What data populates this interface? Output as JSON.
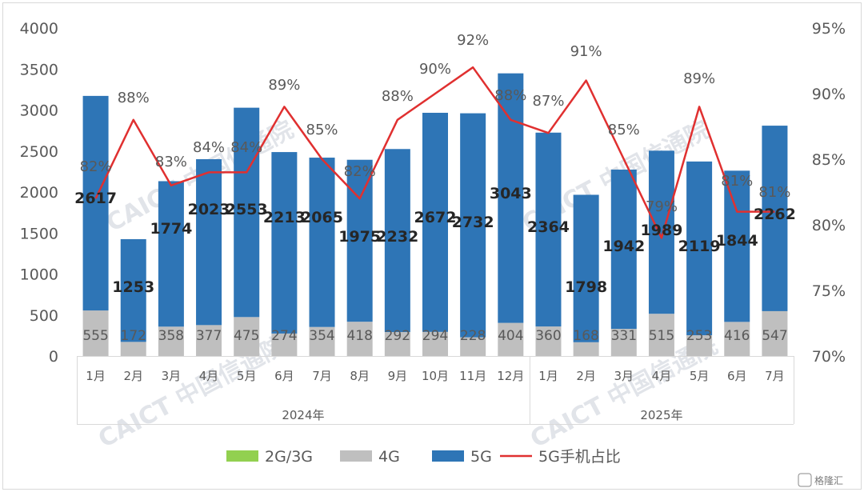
{
  "chart_data": {
    "type": "bar",
    "stacked": true,
    "categories": [
      "1月",
      "2月",
      "3月",
      "4月",
      "5月",
      "6月",
      "7月",
      "8月",
      "9月",
      "10月",
      "11月",
      "12月",
      "1月",
      "2月",
      "3月",
      "4月",
      "5月",
      "6月",
      "7月"
    ],
    "groups": [
      {
        "label": "2024年",
        "count": 12
      },
      {
        "label": "2025年",
        "count": 7
      }
    ],
    "series": [
      {
        "name": "2G/3G",
        "type": "bar",
        "color": "#92d050",
        "values": [
          0,
          0,
          0,
          0,
          0,
          0,
          0,
          0,
          0,
          0,
          0,
          0,
          0,
          0,
          0,
          0,
          0,
          0,
          0
        ]
      },
      {
        "name": "4G",
        "type": "bar",
        "color": "#bfbfbf",
        "values": [
          555,
          172,
          358,
          377,
          475,
          274,
          354,
          418,
          292,
          294,
          228,
          404,
          360,
          168,
          331,
          515,
          253,
          416,
          547
        ]
      },
      {
        "name": "5G",
        "type": "bar",
        "color": "#2e75b6",
        "values": [
          2617,
          1253,
          1774,
          2023,
          2553,
          2213,
          2065,
          1975,
          2232,
          2672,
          2732,
          3043,
          2364,
          1798,
          1942,
          1989,
          2119,
          1844,
          2262
        ]
      },
      {
        "name": "5G手机占比",
        "type": "line",
        "axis": "right",
        "color": "#e03030",
        "values": [
          82,
          88,
          83,
          84,
          84,
          89,
          85,
          82,
          88,
          90,
          92,
          88,
          87,
          91,
          85,
          79,
          89,
          81,
          81
        ],
        "labels": [
          "82%",
          "88%",
          "83%",
          "84%",
          "84%",
          "89%",
          "85%",
          "82%",
          "88%",
          "90%",
          "92%",
          "88%",
          "87%",
          "91%",
          "85%",
          "79%",
          "89%",
          "81%",
          "81%"
        ]
      }
    ],
    "y_left": {
      "min": 0,
      "max": 4000,
      "ticks": [
        "0",
        "500",
        "1000",
        "1500",
        "2000",
        "2500",
        "3000",
        "3500",
        "4000"
      ]
    },
    "y_right": {
      "min": 70,
      "max": 95,
      "ticks": [
        "70%",
        "75%",
        "80%",
        "85%",
        "90%",
        "95%"
      ]
    },
    "legend_position": "bottom",
    "grid": false
  },
  "watermark": "CAICT 中国信通院",
  "logo_text": "格隆汇"
}
